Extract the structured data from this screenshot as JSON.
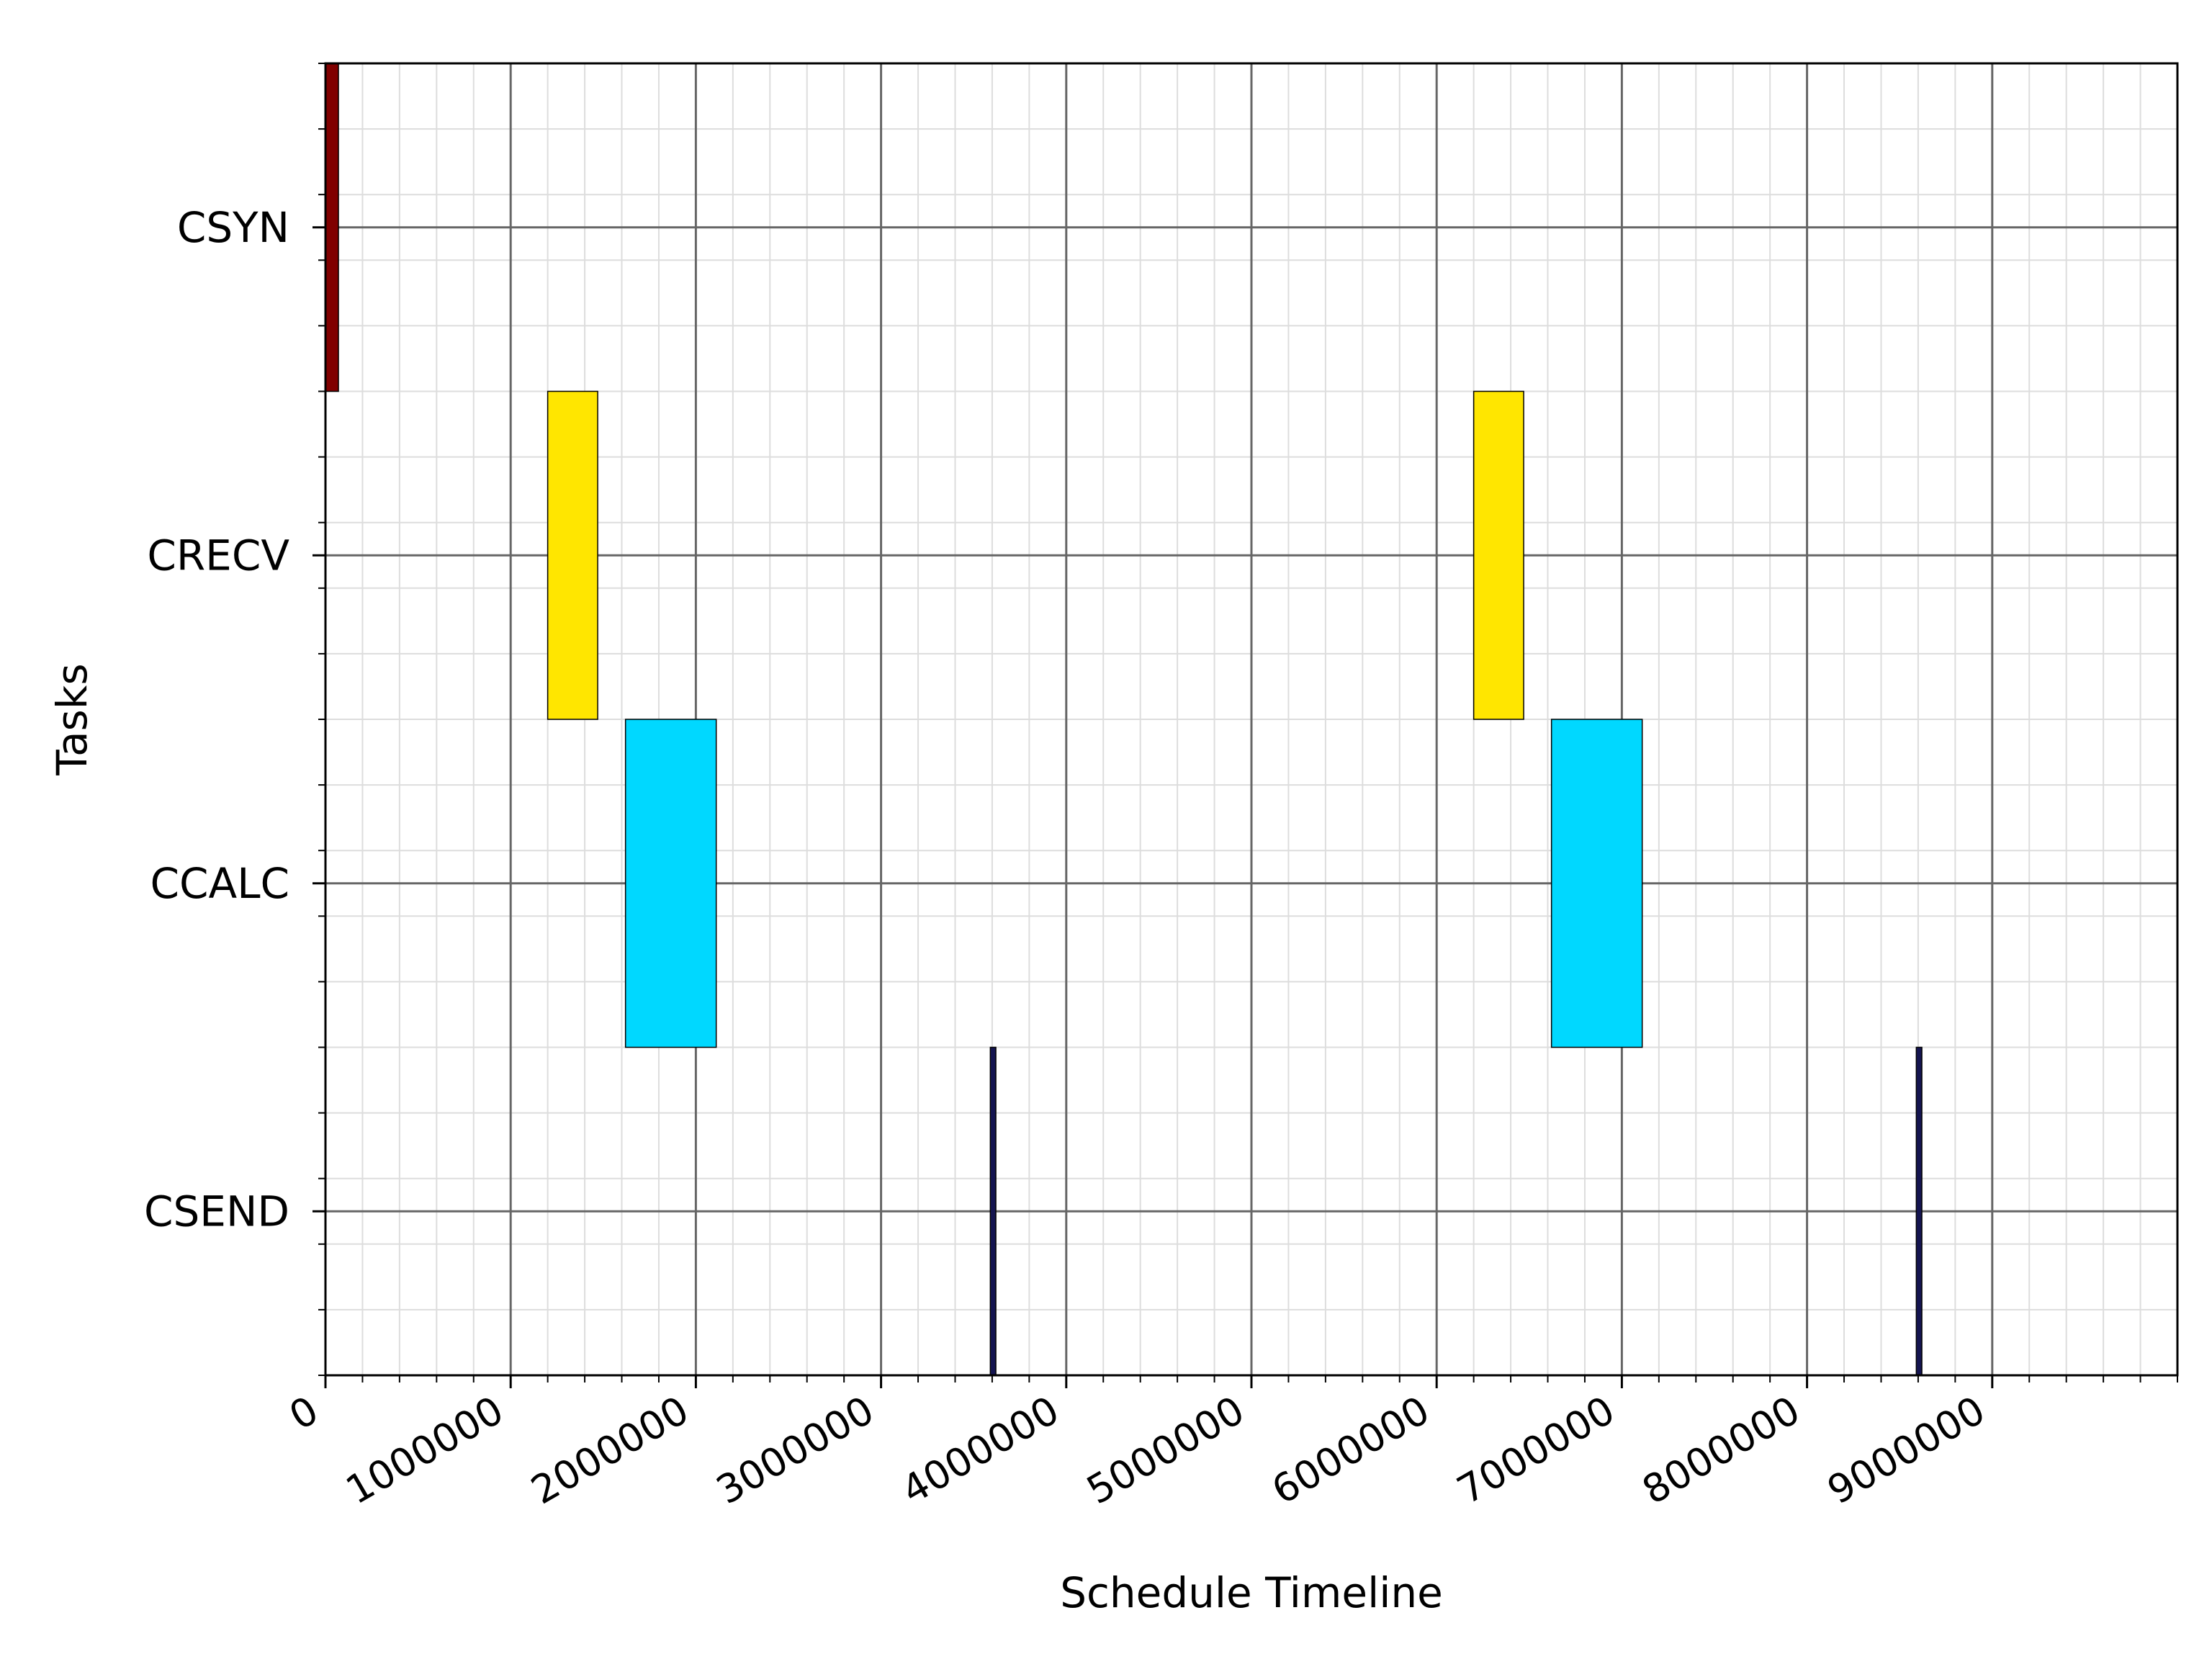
{
  "chart_data": {
    "type": "gantt",
    "title": "",
    "xlabel": "Schedule Timeline",
    "ylabel": "Tasks",
    "xlim": [
      0,
      10000000
    ],
    "xticks": [
      0,
      1000000,
      2000000,
      3000000,
      4000000,
      5000000,
      6000000,
      7000000,
      8000000,
      9000000
    ],
    "xtick_labels": [
      "0",
      "1000000",
      "2000000",
      "3000000",
      "4000000",
      "5000000",
      "6000000",
      "7000000",
      "8000000",
      "9000000"
    ],
    "x_minor_step": 200000,
    "y_minor_per_task": 5,
    "categories": [
      "CSYN",
      "CRECV",
      "CCALC",
      "CSEND"
    ],
    "grid": true,
    "series": [
      {
        "task": "CSYN",
        "color": "#800000",
        "intervals": [
          [
            0,
            70000
          ]
        ]
      },
      {
        "task": "CRECV",
        "color": "#ffe600",
        "intervals": [
          [
            1200000,
            1470000
          ],
          [
            6200000,
            6470000
          ]
        ]
      },
      {
        "task": "CCALC",
        "color": "#00d8ff",
        "intervals": [
          [
            1620000,
            2110000
          ],
          [
            6620000,
            7110000
          ]
        ]
      },
      {
        "task": "CSEND",
        "color": "#141450",
        "intervals": [
          [
            3590000,
            3620000
          ],
          [
            8590000,
            8620000
          ]
        ]
      }
    ],
    "colors": {
      "grid_major": "#666666",
      "grid_minor": "#dddddd",
      "edge": "#000000"
    }
  }
}
